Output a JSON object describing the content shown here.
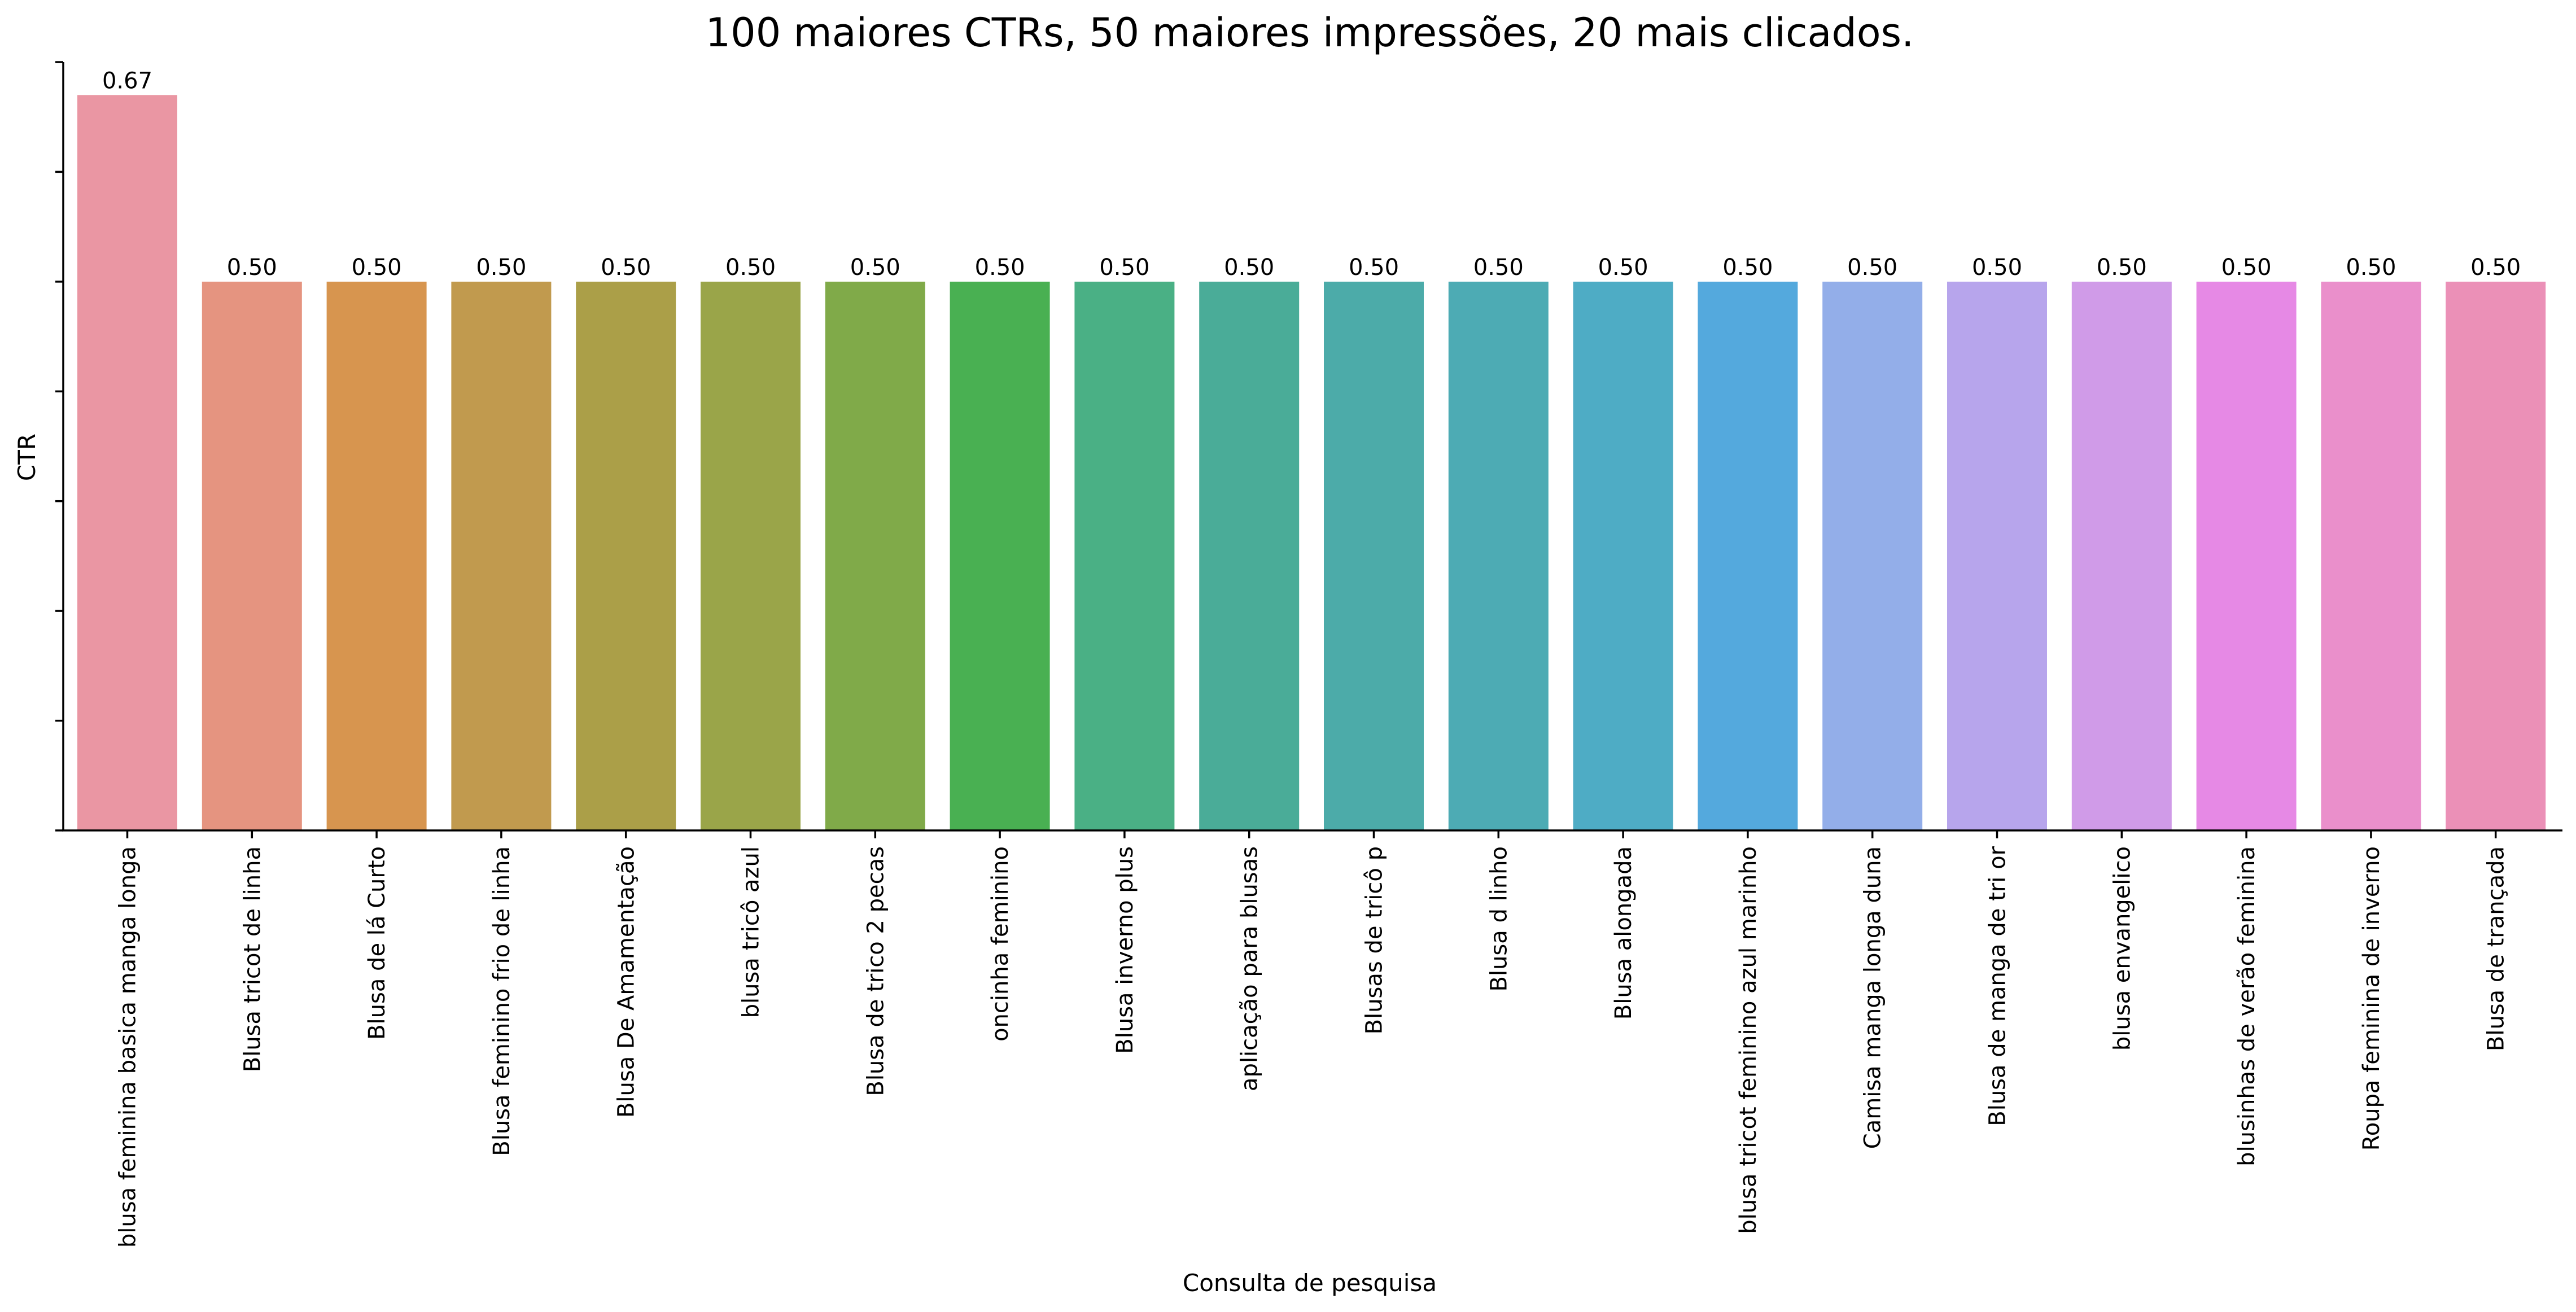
{
  "chart_data": {
    "type": "bar",
    "title": "100 maiores CTRs, 50 maiores impressões, 20 mais clicados.",
    "xlabel": "Consulta de pesquisa",
    "ylabel": "CTR",
    "ylim": [
      0,
      0.7
    ],
    "yticks": [
      0,
      0.1,
      0.2,
      0.3,
      0.4,
      0.5,
      0.6,
      0.7
    ],
    "ytick_labels_visible": false,
    "grid": false,
    "categories": [
      "blusa feminina basica manga longa",
      "Blusa tricot de linha",
      "Blusa  de lá  Curto",
      "Blusa feminino frio de linha",
      "Blusa De Amamentação",
      "blusa tricô azul",
      "Blusa de trico 2 pecas",
      "oncinha feminino",
      "Blusa inverno plus",
      "aplicação para blusas",
      "Blusas de tricô p",
      "Blusa d linho",
      "Blusa alongada",
      "blusa tricot feminino azul marinho",
      "Camisa manga longa duna",
      "Blusa de manga de tri or",
      "blusa envangelico",
      "blusinhas de verão feminina",
      "Roupa feminina de inverno",
      "Blusa de trançada"
    ],
    "values": [
      0.67,
      0.5,
      0.5,
      0.5,
      0.5,
      0.5,
      0.5,
      0.5,
      0.5,
      0.5,
      0.5,
      0.5,
      0.5,
      0.5,
      0.5,
      0.5,
      0.5,
      0.5,
      0.5,
      0.5
    ],
    "data_labels": [
      "0.67",
      "0.50",
      "0.50",
      "0.50",
      "0.50",
      "0.50",
      "0.50",
      "0.50",
      "0.50",
      "0.50",
      "0.50",
      "0.50",
      "0.50",
      "0.50",
      "0.50",
      "0.50",
      "0.50",
      "0.50",
      "0.50",
      "0.50"
    ],
    "colors": [
      "#ea96a3",
      "#e59480",
      "#d7954f",
      "#c19a4e",
      "#ab9f48",
      "#9aa549",
      "#80aa49",
      "#49b052",
      "#4ab085",
      "#4aac98",
      "#4caba9",
      "#4dabb4",
      "#4eacc5",
      "#54a9dd",
      "#93aee9",
      "#b7a5ec",
      "#d09be8",
      "#e689e5",
      "#ea8fcb",
      "#eb90b7"
    ]
  }
}
